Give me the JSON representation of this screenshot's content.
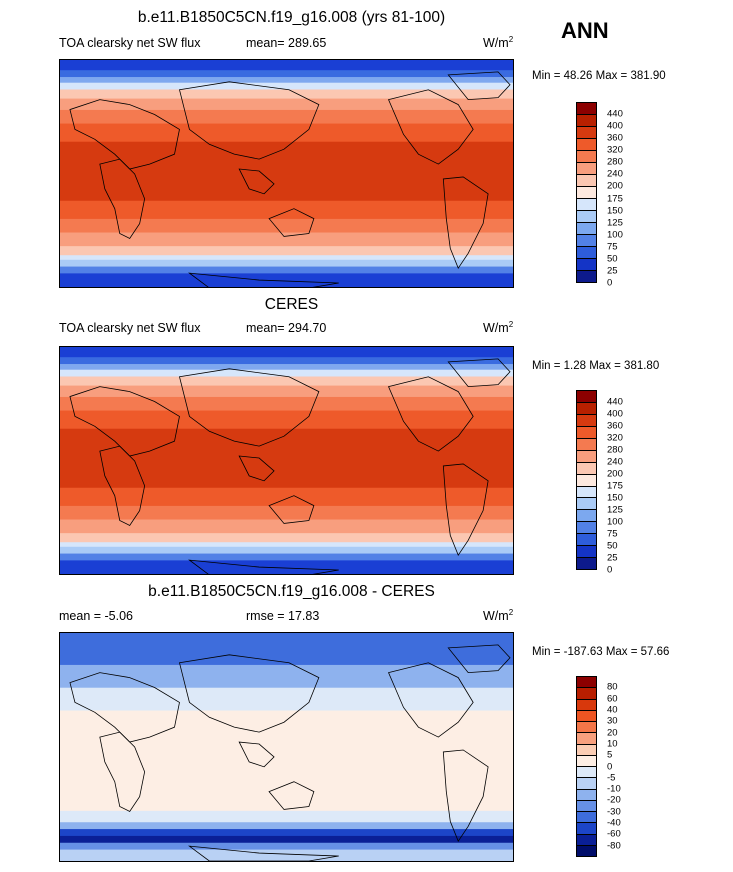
{
  "header": {
    "title": "b.e11.B1850C5CN.f19_g16.008 (yrs 81-100)",
    "season": "ANN"
  },
  "panels": [
    {
      "id": "model",
      "title": "",
      "left_label": "TOA clearsky net SW flux",
      "stat_label": "mean= 289.65",
      "units_base": "W/m",
      "units_exp": "2",
      "minmax": "Min =  48.26 Max = 381.90",
      "colorbar_labels": [
        "440",
        "400",
        "360",
        "320",
        "280",
        "240",
        "200",
        "175",
        "150",
        "125",
        "100",
        "75",
        "50",
        "25",
        "0"
      ],
      "colorbar_colors": [
        "#8c0000",
        "#b82000",
        "#d63a10",
        "#ee5a2a",
        "#f47a50",
        "#f89e7e",
        "#fbc7b2",
        "#fde9df",
        "#d6e6fb",
        "#aacbf6",
        "#7ca8ef",
        "#5281e6",
        "#2e5ddb",
        "#1434c6",
        "#0d1a8c"
      ]
    },
    {
      "id": "obs",
      "title": "CERES",
      "left_label": "TOA clearsky net SW flux",
      "stat_label": "mean= 294.70",
      "units_base": "W/m",
      "units_exp": "2",
      "minmax": "Min =   1.28 Max = 381.80",
      "colorbar_labels": [
        "440",
        "400",
        "360",
        "320",
        "280",
        "240",
        "200",
        "175",
        "150",
        "125",
        "100",
        "75",
        "50",
        "25",
        "0"
      ],
      "colorbar_colors": [
        "#8c0000",
        "#b82000",
        "#d63a10",
        "#ee5a2a",
        "#f47a50",
        "#f89e7e",
        "#fbc7b2",
        "#fde9df",
        "#d6e6fb",
        "#aacbf6",
        "#7ca8ef",
        "#5281e6",
        "#2e5ddb",
        "#1434c6",
        "#0d1a8c"
      ]
    },
    {
      "id": "diff",
      "title": "b.e11.B1850C5CN.f19_g16.008 - CERES",
      "left_label": "mean =  -5.06",
      "stat_label": "rmse =  17.83",
      "units_base": "W/m",
      "units_exp": "2",
      "minmax": "Min = -187.63 Max =  57.66",
      "colorbar_labels": [
        "80",
        "60",
        "40",
        "30",
        "20",
        "10",
        "5",
        "0",
        "-5",
        "-10",
        "-20",
        "-30",
        "-40",
        "-60",
        "-80"
      ],
      "colorbar_colors": [
        "#8c0000",
        "#b81e00",
        "#d8380c",
        "#ee5522",
        "#f47648",
        "#f8a07e",
        "#fbcdb4",
        "#fdeee4",
        "#dde9f8",
        "#b9d1f4",
        "#8eb2ee",
        "#6690e6",
        "#3e6ddc",
        "#1c45c8",
        "#0a1f96",
        "#000d6a"
      ]
    }
  ]
}
